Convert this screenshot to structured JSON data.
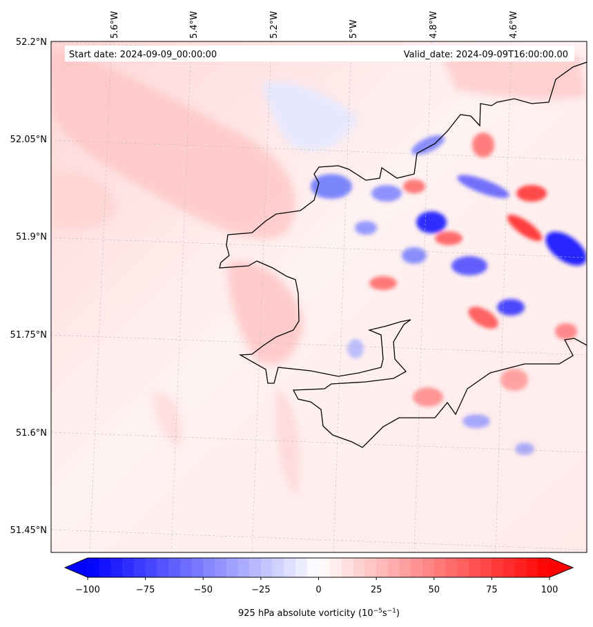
{
  "map": {
    "start_date_label": "Start date: 2024-09-09_00:00:00",
    "valid_date_label": "Valid_date: 2024-09-09T16:00:00.00",
    "longitude_labels": [
      "5.6°W",
      "5.4°W",
      "5.2°W",
      "5°W",
      "4.8°W",
      "4.6°W"
    ],
    "latitude_labels": [
      "52.2°N",
      "52.05°N",
      "51.9°N",
      "51.75°N",
      "51.6°N",
      "51.45°N"
    ],
    "field": "925 hPa absolute vorticity",
    "colormap": "bwr",
    "colors": {
      "negative": "#0000ff",
      "neutral": "#ffffff",
      "positive": "#ff0000",
      "coastline": "#000000"
    }
  },
  "colorbar": {
    "title_prefix": "925 hPa absolute vorticity (10",
    "title_exp1": "−5",
    "title_mid": "s",
    "title_exp2": "−1",
    "title_suffix": ")",
    "min": -100,
    "max": 100,
    "extend": "both",
    "ticks": [
      -100,
      -75,
      -50,
      -25,
      0,
      25,
      50,
      75,
      100
    ],
    "tick_labels": [
      "−100",
      "−75",
      "−50",
      "−25",
      "0",
      "25",
      "50",
      "75",
      "100"
    ]
  }
}
